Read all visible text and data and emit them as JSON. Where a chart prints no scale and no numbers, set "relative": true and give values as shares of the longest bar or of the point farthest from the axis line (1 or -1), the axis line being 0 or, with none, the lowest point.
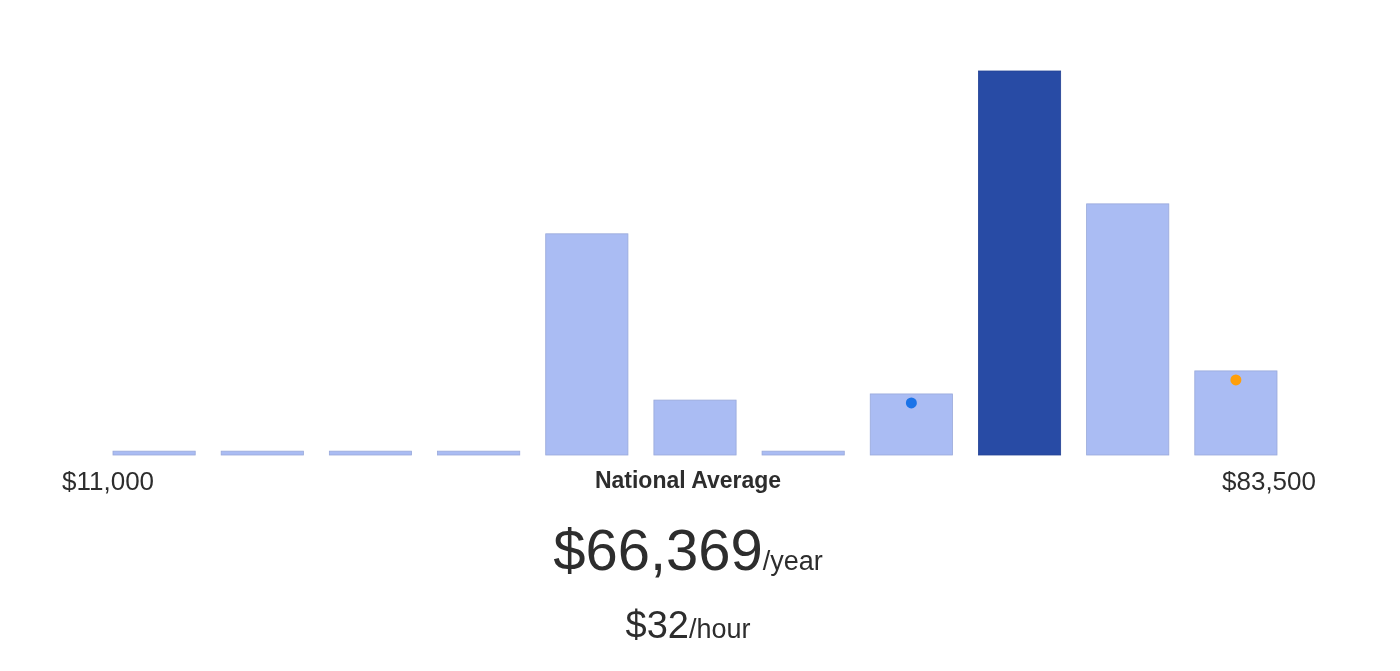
{
  "chart_data": {
    "type": "bar",
    "relative": true,
    "categories": [
      null,
      null,
      null,
      null,
      null,
      null,
      null,
      null,
      null,
      null,
      null
    ],
    "series": [
      {
        "colors": [
          "#aabcf3",
          "#aabcf3",
          "#aabcf3",
          "#aabcf3",
          "#aabcf3",
          "#aabcf3",
          "#aabcf3",
          "#aabcf3",
          "#284ba5",
          "#aabcf3",
          "#aabcf3"
        ],
        "values": [
          0.01,
          0.01,
          0.01,
          0.01,
          0.576,
          0.143,
          0.01,
          0.159,
          1,
          0.654,
          0.219
        ]
      }
    ],
    "annotations": [
      "$11,000",
      "$83,500",
      "National Average",
      "$66,369",
      "/year",
      "$32",
      "/hour"
    ]
  }
}
